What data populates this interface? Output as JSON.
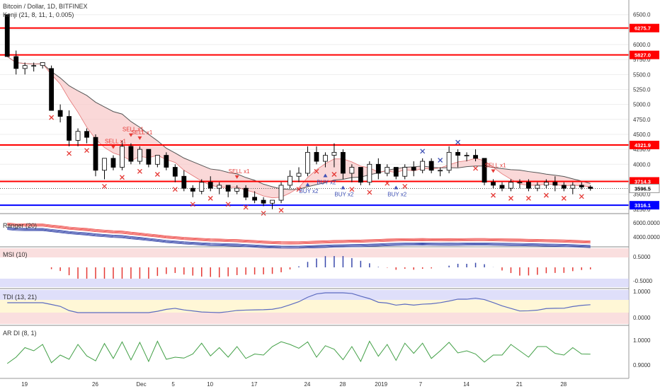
{
  "colors": {
    "up": "#ffffff",
    "down": "#000000",
    "resistance": "#ff0000",
    "support": "#0000ff",
    "cloud": "#f8c8c8",
    "sell": "#e53935",
    "buy": "#3f51b5",
    "ribbon_red": "#ef5350",
    "ribbon_blue": "#3949ab"
  },
  "main": {
    "title": "Bitcoin / Dollar, 1D, BITFINEX",
    "indicator": "Kenji (21, 8, 11, 1, 0.005)",
    "yticks": [
      "6500.0",
      "6250.0",
      "6000.0",
      "5750.0",
      "5500.0",
      "5250.0",
      "5000.0",
      "4750.0",
      "4500.0",
      "4250.0",
      "4000.0",
      "3750.0",
      "3500.0",
      "3250.0"
    ],
    "level_tags": [
      {
        "label": "6275.7",
        "value": 6275.7,
        "kind": "resistance"
      },
      {
        "label": "5827.0",
        "value": 5827.0,
        "kind": "resistance"
      },
      {
        "label": "4321.9",
        "value": 4321.9,
        "kind": "resistance"
      },
      {
        "label": "3714.3",
        "value": 3714.3,
        "kind": "resistance"
      },
      {
        "label": "3596.5",
        "value": 3596.5,
        "kind": "last"
      },
      {
        "label": "3316.1",
        "value": 3316.1,
        "kind": "support"
      }
    ],
    "signals": [
      {
        "label": "SELL x1",
        "kind": "sell",
        "bar": 12
      },
      {
        "label": "SELL x1",
        "kind": "sell",
        "bar": 14
      },
      {
        "label": "SELL x1",
        "kind": "sell",
        "bar": 15
      },
      {
        "label": "SELL x1",
        "kind": "sell",
        "bar": 26
      },
      {
        "label": "BUY x2",
        "kind": "buy",
        "bar": 34
      },
      {
        "label": "BUY x2",
        "kind": "buy",
        "bar": 36
      },
      {
        "label": "BUY x2",
        "kind": "buy",
        "bar": 38
      },
      {
        "label": "BUY x2",
        "kind": "buy",
        "bar": 44
      },
      {
        "label": "SELL x1",
        "kind": "sell",
        "bar": 55
      }
    ]
  },
  "ribbon": {
    "title": "Ranger (20)",
    "yticks": [
      "6000.0000",
      "4000.0000"
    ]
  },
  "msi": {
    "title": "MSI (10)",
    "yticks": [
      "0.5000",
      "-0.5000"
    ]
  },
  "tdi": {
    "title": "TDI (13, 21)",
    "yticks": [
      "1.0000",
      "0.0000"
    ]
  },
  "ardi": {
    "title": "AR DI (8, 1)",
    "yticks": [
      "1.0000",
      "0.9000"
    ]
  },
  "xaxis": {
    "labels": [
      "19",
      "26",
      "Dec",
      "5",
      "10",
      "17",
      "24",
      "28",
      "2019",
      "7",
      "14",
      "21",
      "28"
    ]
  },
  "chart_data": {
    "type": "candlestick",
    "title": "Bitcoin / Dollar, 1D, BITFINEX",
    "ylim": [
      3200,
      6650
    ],
    "resistance_levels": [
      6275.7,
      5827.0,
      4321.9,
      3714.3
    ],
    "support_levels": [
      3316.1
    ],
    "last_price": 3596.5,
    "ohlc": [
      [
        6500,
        6500,
        5800,
        5800
      ],
      [
        5800,
        5900,
        5500,
        5600
      ],
      [
        5600,
        5700,
        5500,
        5650
      ],
      [
        5650,
        5700,
        5550,
        5650
      ],
      [
        5650,
        5700,
        5600,
        5700
      ],
      [
        5600,
        5650,
        4900,
        4900
      ],
      [
        4900,
        5000,
        4700,
        4800
      ],
      [
        4800,
        4900,
        4300,
        4400
      ],
      [
        4400,
        4600,
        4300,
        4550
      ],
      [
        4550,
        4600,
        4350,
        4450
      ],
      [
        4450,
        4500,
        3800,
        3900
      ],
      [
        3900,
        4100,
        3750,
        4100
      ],
      [
        4100,
        4150,
        3900,
        3950
      ],
      [
        3950,
        4400,
        3900,
        4300
      ],
      [
        4300,
        4350,
        4000,
        4050
      ],
      [
        4050,
        4300,
        4000,
        4250
      ],
      [
        4250,
        4250,
        3950,
        4000
      ],
      [
        4000,
        4150,
        3950,
        4150
      ],
      [
        4150,
        4200,
        3900,
        3950
      ],
      [
        3950,
        4000,
        3700,
        3800
      ],
      [
        3800,
        3900,
        3550,
        3600
      ],
      [
        3600,
        3650,
        3450,
        3550
      ],
      [
        3550,
        3750,
        3500,
        3700
      ],
      [
        3700,
        3800,
        3550,
        3600
      ],
      [
        3600,
        3700,
        3500,
        3650
      ],
      [
        3650,
        3650,
        3450,
        3550
      ],
      [
        3550,
        3650,
        3500,
        3600
      ],
      [
        3600,
        3650,
        3400,
        3450
      ],
      [
        3450,
        3550,
        3350,
        3400
      ],
      [
        3400,
        3450,
        3300,
        3350
      ],
      [
        3350,
        3400,
        3250,
        3400
      ],
      [
        3400,
        3700,
        3350,
        3650
      ],
      [
        3650,
        3900,
        3600,
        3800
      ],
      [
        3800,
        3950,
        3700,
        3850
      ],
      [
        3850,
        4300,
        3800,
        4200
      ],
      [
        4200,
        4300,
        4000,
        4050
      ],
      [
        4050,
        4200,
        3950,
        4150
      ],
      [
        4150,
        4350,
        3950,
        4200
      ],
      [
        4200,
        4250,
        3750,
        3850
      ],
      [
        3850,
        4000,
        3700,
        3950
      ],
      [
        3950,
        3950,
        3650,
        3700
      ],
      [
        3700,
        4050,
        3650,
        4000
      ],
      [
        4000,
        4100,
        3750,
        3850
      ],
      [
        3850,
        4000,
        3800,
        3950
      ],
      [
        3950,
        3950,
        3750,
        3800
      ],
      [
        3800,
        4000,
        3750,
        3950
      ],
      [
        3950,
        4050,
        3800,
        3900
      ],
      [
        3900,
        4100,
        3850,
        4050
      ],
      [
        4050,
        4100,
        3850,
        3900
      ],
      [
        3900,
        3950,
        3800,
        3900
      ],
      [
        3900,
        4300,
        3850,
        4200
      ],
      [
        4200,
        4250,
        3950,
        4150
      ],
      [
        4150,
        4200,
        4050,
        4150
      ],
      [
        4150,
        4250,
        4050,
        4100
      ],
      [
        4100,
        4100,
        3650,
        3700
      ],
      [
        3700,
        3750,
        3600,
        3650
      ],
      [
        3650,
        3700,
        3550,
        3600
      ],
      [
        3600,
        3750,
        3550,
        3700
      ],
      [
        3700,
        3750,
        3600,
        3700
      ],
      [
        3700,
        3750,
        3550,
        3600
      ],
      [
        3600,
        3700,
        3550,
        3650
      ],
      [
        3650,
        3750,
        3600,
        3700
      ],
      [
        3700,
        3800,
        3550,
        3650
      ],
      [
        3650,
        3700,
        3550,
        3600
      ],
      [
        3600,
        3700,
        3500,
        3650
      ],
      [
        3650,
        3700,
        3580,
        3620
      ],
      [
        3620,
        3650,
        3560,
        3596.5
      ]
    ]
  }
}
